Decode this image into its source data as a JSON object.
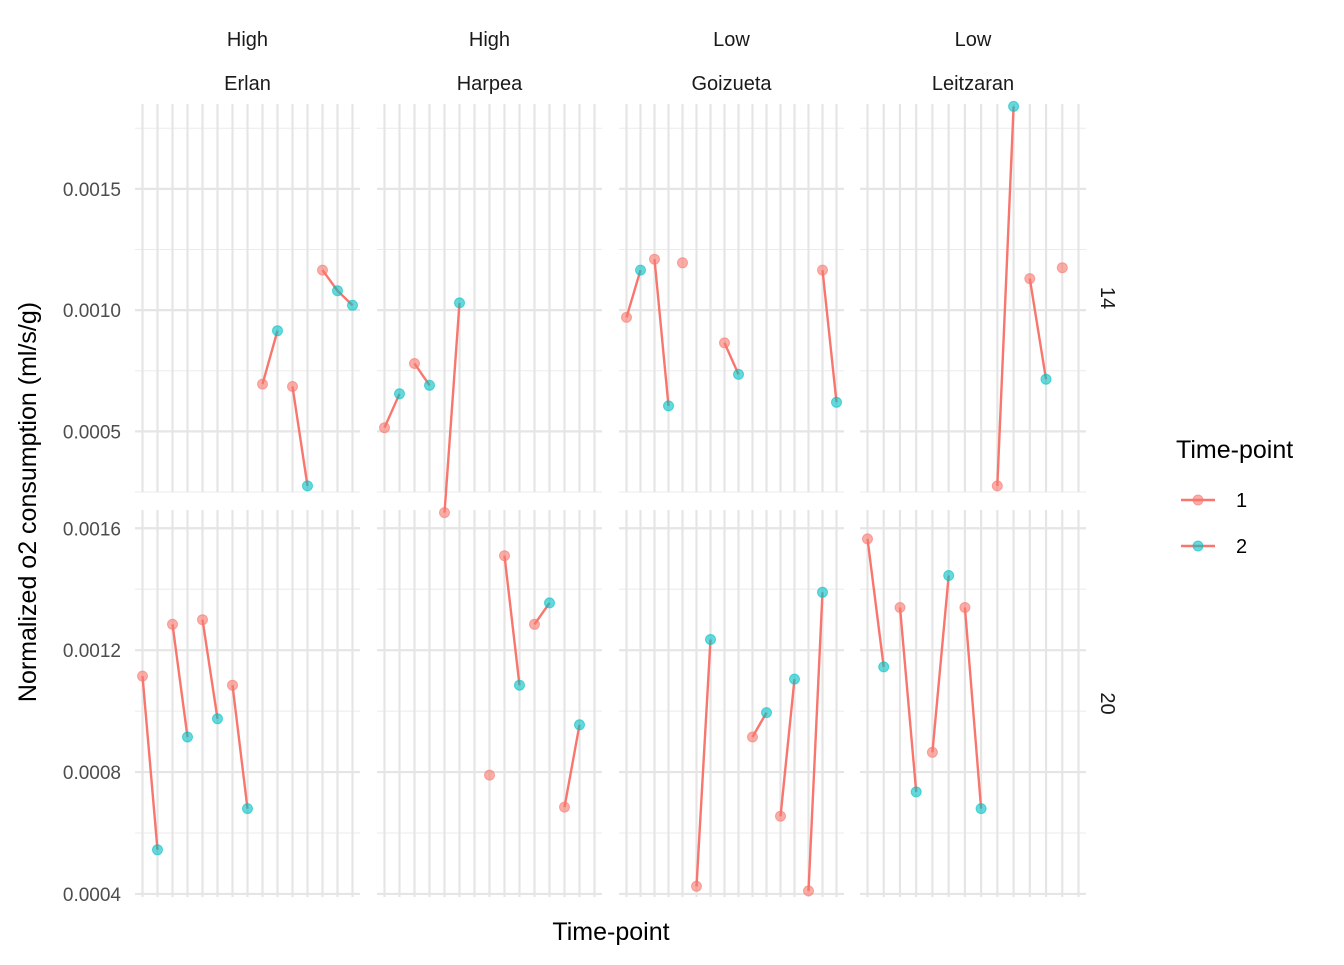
{
  "chart_data": {
    "type": "line",
    "title": "",
    "xlabel": "Time-point",
    "ylabel": "Normalized o2 consumption (ml/s/g)",
    "legend": {
      "title": "Time-point",
      "position": "right",
      "entries": [
        {
          "label": "1",
          "color": "#F8766D"
        },
        {
          "label": "2",
          "color": "#00BFC4"
        }
      ]
    },
    "grid": true,
    "facet_columns": [
      {
        "top": "High",
        "bottom": "Erlan",
        "vlines": 15
      },
      {
        "top": "High",
        "bottom": "Harpea",
        "vlines": 15
      },
      {
        "top": "Low",
        "bottom": "Goizueta",
        "vlines": 16
      },
      {
        "top": "Low",
        "bottom": "Leitzaran",
        "vlines": 14
      }
    ],
    "facet_rows": [
      {
        "label": "14",
        "ylim": [
          0.00025,
          0.00185
        ],
        "ticks": [
          0.0005,
          0.001,
          0.0015
        ],
        "tick_labels": [
          "0.0005",
          "0.0010",
          "0.0015"
        ]
      },
      {
        "label": "20",
        "ylim": [
          0.00039,
          0.00166
        ],
        "ticks": [
          0.0004,
          0.0008,
          0.0012,
          0.0016
        ],
        "tick_labels": [
          "0.0004",
          "0.0008",
          "0.0012",
          "0.0016"
        ]
      }
    ],
    "panels": [
      {
        "col": 0,
        "row": 0,
        "segments": [
          [
            [
              8,
              0.000695,
              1
            ],
            [
              9,
              0.000915,
              2
            ]
          ],
          [
            [
              10,
              0.000685,
              1
            ],
            [
              11,
              0.000275,
              2
            ]
          ],
          [
            [
              12,
              0.001165,
              1
            ],
            [
              13,
              0.00108,
              2
            ],
            [
              14,
              0.00102,
              2
            ]
          ]
        ]
      },
      {
        "col": 1,
        "row": 0,
        "segments": [
          [
            [
              0,
              0.000515,
              1
            ],
            [
              1,
              0.000655,
              2
            ]
          ],
          [
            [
              2,
              0.00078,
              1
            ],
            [
              3,
              0.00069,
              2
            ]
          ],
          [
            [
              4,
              0.000165,
              1
            ],
            [
              5,
              0.00103,
              2
            ]
          ]
        ]
      },
      {
        "col": 2,
        "row": 0,
        "segments": [
          [
            [
              0,
              0.00097,
              1
            ],
            [
              1,
              0.001165,
              2
            ]
          ],
          [
            [
              2,
              0.00121,
              1
            ],
            [
              3,
              0.000605,
              2
            ]
          ],
          [
            [
              4,
              0.001195,
              1
            ]
          ],
          [
            [
              7,
              0.000865,
              1
            ],
            [
              8,
              0.000735,
              2
            ]
          ],
          [
            [
              14,
              0.001165,
              1
            ],
            [
              15,
              0.00062,
              2
            ]
          ]
        ]
      },
      {
        "col": 3,
        "row": 0,
        "segments": [
          [
            [
              8,
              0.000275,
              1
            ],
            [
              9,
              0.00184,
              2
            ]
          ],
          [
            [
              10,
              0.00113,
              1
            ],
            [
              11,
              0.000715,
              2
            ]
          ],
          [
            [
              12,
              0.001175,
              1
            ]
          ]
        ]
      },
      {
        "col": 0,
        "row": 1,
        "segments": [
          [
            [
              0,
              0.001115,
              1
            ],
            [
              1,
              0.000545,
              2
            ]
          ],
          [
            [
              2,
              0.001285,
              1
            ],
            [
              3,
              0.000915,
              2
            ]
          ],
          [
            [
              4,
              0.0013,
              1
            ],
            [
              5,
              0.000975,
              2
            ]
          ],
          [
            [
              6,
              0.001085,
              1
            ],
            [
              7,
              0.00068,
              2
            ]
          ]
        ]
      },
      {
        "col": 1,
        "row": 1,
        "segments": [
          [
            [
              7,
              0.00079,
              1
            ]
          ],
          [
            [
              8,
              0.00151,
              1
            ],
            [
              9,
              0.001085,
              2
            ]
          ],
          [
            [
              10,
              0.001285,
              1
            ],
            [
              11,
              0.001355,
              2
            ]
          ],
          [
            [
              12,
              0.000685,
              1
            ],
            [
              13,
              0.000955,
              2
            ]
          ]
        ]
      },
      {
        "col": 2,
        "row": 1,
        "segments": [
          [
            [
              5,
              0.000425,
              1
            ],
            [
              6,
              0.001235,
              2
            ]
          ],
          [
            [
              9,
              0.000915,
              1
            ],
            [
              10,
              0.000995,
              2
            ]
          ],
          [
            [
              11,
              0.000655,
              1
            ],
            [
              12,
              0.001105,
              2
            ]
          ],
          [
            [
              13,
              0.00041,
              1
            ],
            [
              14,
              0.00139,
              2
            ]
          ]
        ]
      },
      {
        "col": 3,
        "row": 1,
        "segments": [
          [
            [
              0,
              0.001565,
              1
            ],
            [
              1,
              0.001145,
              2
            ]
          ],
          [
            [
              2,
              0.00134,
              1
            ],
            [
              3,
              0.000735,
              2
            ]
          ],
          [
            [
              4,
              0.000865,
              1
            ],
            [
              5,
              0.001445,
              2
            ]
          ],
          [
            [
              6,
              0.00134,
              1
            ],
            [
              7,
              0.00068,
              2
            ]
          ]
        ]
      }
    ]
  }
}
